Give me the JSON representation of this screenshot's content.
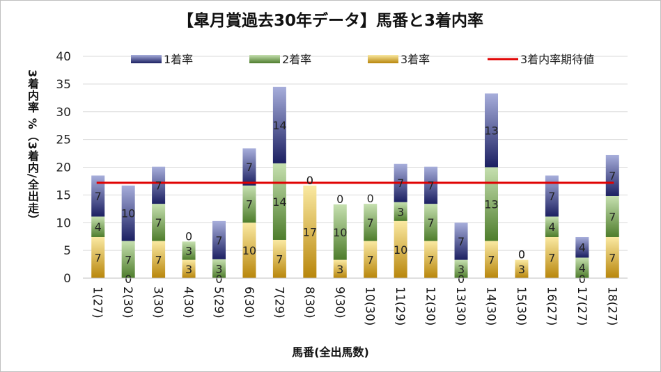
{
  "chart_data": {
    "type": "bar",
    "stacked": true,
    "title": "【皐月賞過去30年データ】馬番と3着内率",
    "xlabel": "馬番(全出馬数)",
    "ylabel": "3着内率 %（3着内/全出走）",
    "ylim": [
      0,
      40
    ],
    "yticks": [
      "0",
      "5",
      "10",
      "15",
      "20",
      "25",
      "30",
      "35",
      "40"
    ],
    "categories": [
      "1(27)",
      "2(30)",
      "3(30)",
      "4(30)",
      "5(29)",
      "6(30)",
      "7(29)",
      "8(30)",
      "9(30)",
      "10(30)",
      "11(29)",
      "12(30)",
      "13(30)",
      "14(30)",
      "15(30)",
      "16(27)",
      "17(27)",
      "18(27)"
    ],
    "series": [
      {
        "name": "3着率",
        "values": [
          7.4,
          0,
          6.7,
          3.3,
          0,
          10.0,
          6.9,
          16.7,
          3.3,
          6.7,
          10.3,
          6.7,
          0,
          6.7,
          3.3,
          7.4,
          0,
          7.4
        ],
        "labels": [
          "7",
          "0",
          "7",
          "3",
          "0",
          "10",
          "7",
          "17",
          "3",
          "7",
          "10",
          "7",
          "0",
          "7",
          "3",
          "7",
          "0",
          "7"
        ]
      },
      {
        "name": "2着率",
        "values": [
          3.7,
          6.7,
          6.7,
          3.3,
          3.4,
          6.7,
          13.8,
          0,
          10.0,
          6.7,
          3.4,
          6.7,
          3.3,
          13.3,
          0,
          3.7,
          3.7,
          7.4
        ],
        "labels": [
          "4",
          "7",
          "7",
          "3",
          "3",
          "7",
          "14",
          "0",
          "10",
          "7",
          "3",
          "7",
          "3",
          "13",
          "0",
          "4",
          "4",
          "7"
        ]
      },
      {
        "name": "1着率",
        "values": [
          7.4,
          10.0,
          6.7,
          0,
          6.9,
          6.7,
          13.8,
          0,
          0,
          0,
          6.9,
          6.7,
          6.7,
          13.3,
          0,
          7.4,
          3.7,
          7.4
        ],
        "labels": [
          "7",
          "10",
          "7",
          "0",
          "7",
          "7",
          "14",
          "0",
          "0",
          "0",
          "7",
          "7",
          "7",
          "13",
          "0",
          "7",
          "4",
          "7"
        ]
      }
    ],
    "reference_line": {
      "name": "3着内率期待値",
      "value": 17.2
    },
    "legend": [
      "1着率",
      "2着率",
      "3着率",
      "3着内率期待値"
    ],
    "legend_position": "top",
    "colors": {
      "1着率": [
        "#a7aedb",
        "#1c2062"
      ],
      "2着率": [
        "#c6e0b0",
        "#4e7d2c"
      ],
      "3着率": [
        "#fae9a2",
        "#b8860b"
      ],
      "3着内率期待値": "#e00000",
      "gridline": "#d9d9d9"
    }
  }
}
